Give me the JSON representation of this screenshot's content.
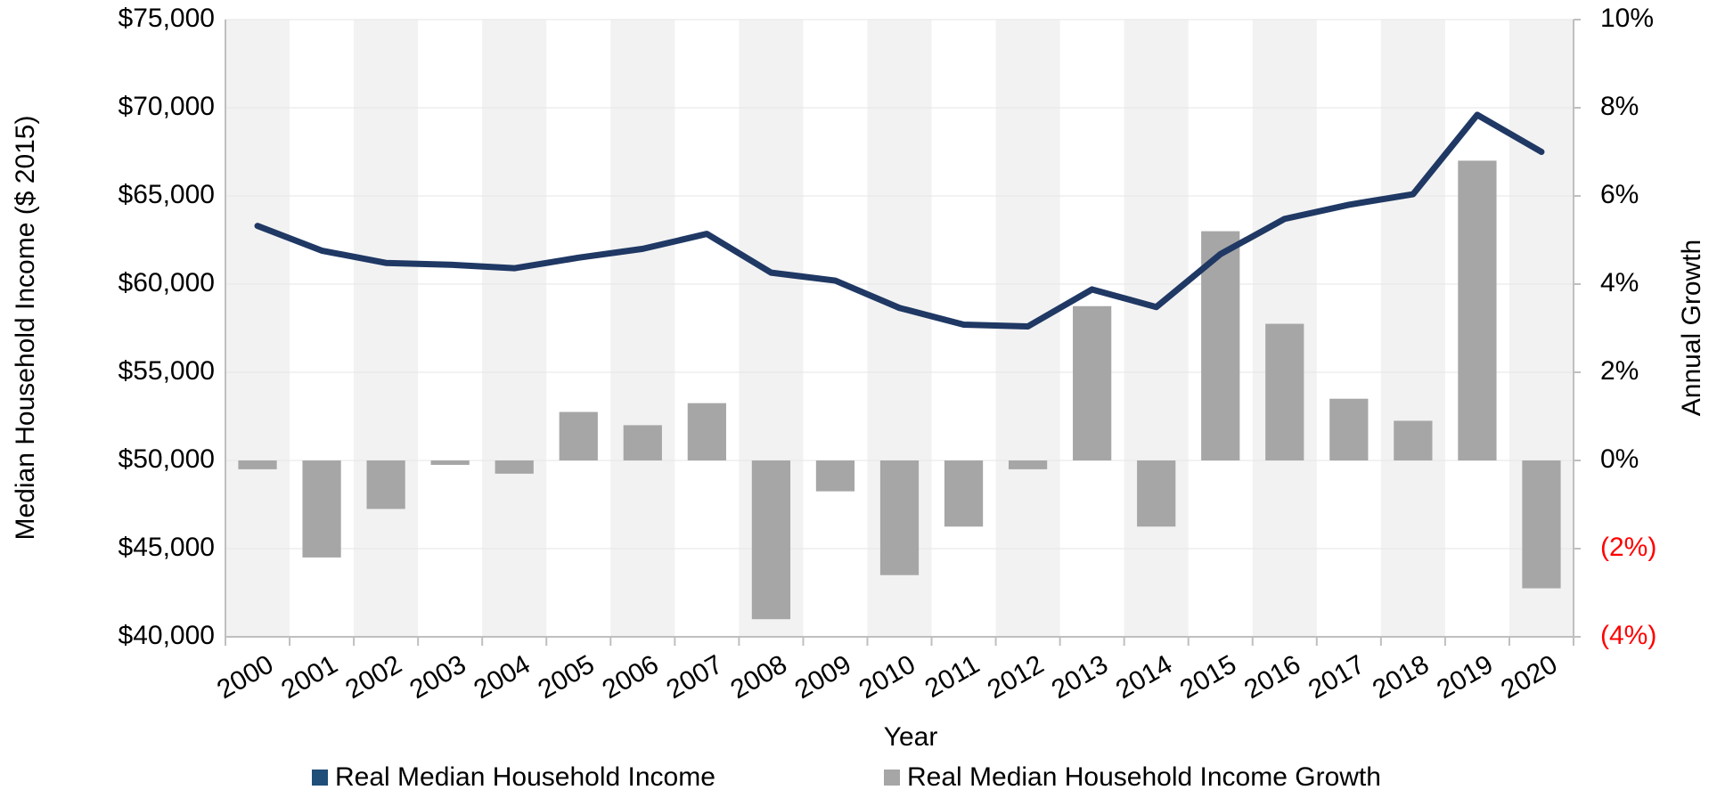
{
  "chart_data": {
    "type": "bar_line",
    "categories": [
      "2000",
      "2001",
      "2002",
      "2003",
      "2004",
      "2005",
      "2006",
      "2007",
      "2008",
      "2009",
      "2010",
      "2011",
      "2012",
      "2013",
      "2014",
      "2015",
      "2016",
      "2017",
      "2018",
      "2019",
      "2020"
    ],
    "series": [
      {
        "name": "Real Median Household Income",
        "color": "#1f3864",
        "kind": "line",
        "axis": "y",
        "values": [
          63300,
          61900,
          61200,
          61100,
          60900,
          61500,
          62000,
          62850,
          60650,
          60200,
          58650,
          57700,
          57600,
          59700,
          58700,
          61700,
          63700,
          64500,
          65100,
          69600,
          67500
        ]
      },
      {
        "name": "Real Median Household Income Growth",
        "color": "#a6a6a6",
        "kind": "bar",
        "axis": "y2",
        "values": [
          -0.2,
          -2.2,
          -1.1,
          -0.1,
          -0.3,
          1.1,
          0.8,
          1.3,
          -3.6,
          -0.7,
          -2.6,
          -1.5,
          -0.2,
          3.5,
          -1.5,
          5.2,
          3.1,
          1.4,
          0.9,
          6.8,
          -2.9
        ]
      }
    ],
    "x_label": "Year",
    "y_label": "Median Household Income ($ 2015)",
    "y2_label": "Annual Growth",
    "ylim": [
      40000,
      75000
    ],
    "yticks": [
      {
        "value": 40000,
        "label": "$40,000"
      },
      {
        "value": 45000,
        "label": "$45,000"
      },
      {
        "value": 50000,
        "label": "$50,000"
      },
      {
        "value": 55000,
        "label": "$55,000"
      },
      {
        "value": 60000,
        "label": "$60,000"
      },
      {
        "value": 65000,
        "label": "$65,000"
      },
      {
        "value": 70000,
        "label": "$70,000"
      },
      {
        "value": 75000,
        "label": "$75,000"
      }
    ],
    "y2lim": [
      -4,
      10
    ],
    "y2ticks": [
      {
        "value": -4,
        "label": "(4%)"
      },
      {
        "value": -2,
        "label": "(2%)"
      },
      {
        "value": 0,
        "label": "0%"
      },
      {
        "value": 2,
        "label": "2%"
      },
      {
        "value": 4,
        "label": "4%"
      },
      {
        "value": 6,
        "label": "6%"
      },
      {
        "value": 8,
        "label": "8%"
      },
      {
        "value": 10,
        "label": "10%"
      }
    ],
    "negative_tick_color": "#ff0000",
    "grid": true,
    "legend": "bottom"
  }
}
